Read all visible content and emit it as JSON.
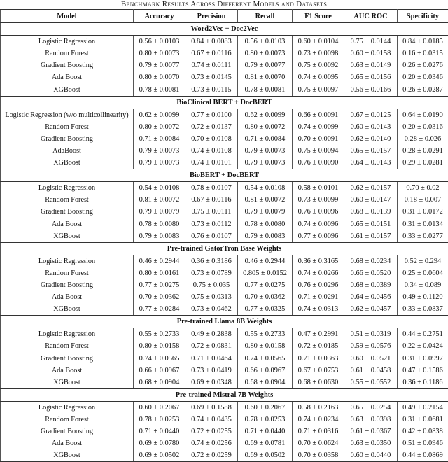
{
  "caption": "Benchmark Results Across Different Models and Datasets",
  "columns": [
    "Model",
    "Accuracy",
    "Precision",
    "Recall",
    "F1 Score",
    "AUC ROC",
    "Specificity"
  ],
  "sections": [
    {
      "title": "Word2Vec + Doc2Vec",
      "rows": [
        [
          "Logistic Regression",
          "0.56 ± 0.0103",
          "0.84 ± 0.0083",
          "0.56 ± 0.0103",
          "0.60 ± 0.0104",
          "0.75 ± 0.0144",
          "0.84 ± 0.0185"
        ],
        [
          "Random Forest",
          "0.80 ± 0.0073",
          "0.67 ± 0.0116",
          "0.80 ± 0.0073",
          "0.73 ± 0.0098",
          "0.60 ± 0.0158",
          "0.16 ± 0.0315"
        ],
        [
          "Gradient Boosting",
          "0.79 ± 0.0077",
          "0.74 ± 0.0111",
          "0.79 ± 0.0077",
          "0.75 ± 0.0092",
          "0.63 ± 0.0149",
          "0.26 ± 0.0276"
        ],
        [
          "Ada Boost",
          "0.80 ± 0.0070",
          "0.73 ± 0.0145",
          "0.81 ± 0.0070",
          "0.74 ± 0.0095",
          "0.65 ± 0.0156",
          "0.20 ± 0.0346"
        ],
        [
          "XGBoost",
          "0.78 ± 0.0081",
          "0.73 ± 0.0115",
          "0.78 ± 0.0081",
          "0.75 ± 0.0097",
          "0.56 ± 0.0166",
          "0.26 ± 0.0287"
        ]
      ]
    },
    {
      "title": "BioClinical BERT + DocBERT",
      "rows": [
        [
          "Logistic Regression (w/o multicollinearity)",
          "0.62 ± 0.0099",
          "0.77 ± 0.0100",
          "0.62 ± 0.0099",
          "0.66 ± 0.0091",
          "0.67 ± 0.0125",
          "0.64 ± 0.0190"
        ],
        [
          "Random Forest",
          "0.80 ± 0.0072",
          "0.72 ± 0.0137",
          "0.80 ± 0.0072",
          "0.74 ± 0.0099",
          "0.60 ± 0.0143",
          "0.20 ± 0.0316"
        ],
        [
          "Gradient Boosting",
          "0.71 ± 0.0084",
          "0.70 ± 0.0108",
          "0.71 ± 0.0084",
          "0.70 ± 0.0091",
          "0.62 ± 0.0140",
          "0.28 ± 0.026"
        ],
        [
          "AdaBoost",
          "0.79 ± 0.0073",
          "0.74 ± 0.0108",
          "0.79 ± 0.0073",
          "0.75 ± 0.0094",
          "0.65 ± 0.0157",
          "0.28 ± 0.0291"
        ],
        [
          "XGBoost",
          "0.79 ± 0.0073",
          "0.74 ± 0.0101",
          "0.79 ± 0.0073",
          "0.76 ± 0.0090",
          "0.64 ± 0.0143",
          "0.29 ± 0.0281"
        ]
      ]
    },
    {
      "title": "BioBERT + DocBERT",
      "rows": [
        [
          "Logistic Regression",
          "0.54 ± 0.0108",
          "0.78 ± 0.0107",
          "0.54 ± 0.0108",
          "0.58 ± 0.0101",
          "0.62 ± 0.0157",
          "0.70 ± 0.02"
        ],
        [
          "Random Forest",
          "0.81 ± 0.0072",
          "0.67 ± 0.0116",
          "0.81 ± 0.0072",
          "0.73 ± 0.0099",
          "0.60 ± 0.0147",
          "0.18 ± 0.007"
        ],
        [
          "Gradient Boosting",
          "0.79 ± 0.0079",
          "0.75 ± 0.0111",
          "0.79 ± 0.0079",
          "0.76 ± 0.0096",
          "0.68 ± 0.0139",
          "0.31 ± 0.0172"
        ],
        [
          "Ada Boost",
          "0.78 ± 0.0080",
          "0.73 ± 0.0112",
          "0.78 ± 0.0080",
          "0.74 ± 0.0096",
          "0.65 ± 0.0151",
          "0.31 ± 0.0134"
        ],
        [
          "XGBoost",
          "0.79 ± 0.0083",
          "0.76 ± 0.0107",
          "0.79 ± 0.0083",
          "0.77 ± 0.0096",
          "0.61 ± 0.0157",
          "0.33 ± 0.0277"
        ]
      ]
    },
    {
      "title": "Pre-trained GatorTron Base Weights",
      "rows": [
        [
          "Logistic Regression",
          "0.46 ± 0.2944",
          "0.36 ± 0.3186",
          "0.46 ± 0.2944",
          "0.36 ± 0.3165",
          "0.68 ± 0.0234",
          "0.52 ± 0.294"
        ],
        [
          "Random Forest",
          "0.80 ± 0.0161",
          "0.73 ± 0.0789",
          "0.805 ± 0.0152",
          "0.74 ± 0.0266",
          "0.66 ± 0.0520",
          "0.25 ± 0.0604"
        ],
        [
          "Gradient Boosting",
          "0.77 ± 0.0275",
          "0.75 ± 0.035",
          "0.77 ± 0.0275",
          "0.76 ± 0.0296",
          "0.68 ± 0.0389",
          "0.34 ± 0.089"
        ],
        [
          "Ada Boost",
          "0.70 ± 0.0362",
          "0.75 ± 0.0313",
          "0.70 ± 0.0362",
          "0.71 ± 0.0291",
          "0.64 ± 0.0456",
          "0.49 ± 0.1120"
        ],
        [
          "XGBoost",
          "0.77 ± 0.0284",
          "0.73 ± 0.0462",
          "0.77 ± 0.0325",
          "0.74 ± 0.0313",
          "0.62 ± 0.0457",
          "0.33 ± 0.0837"
        ]
      ]
    },
    {
      "title": "Pre-trained Llama 8B Weights",
      "rows": [
        [
          "Logistic Regression",
          "0.55 ± 0.2733",
          "0.49 ± 0.2838",
          "0.55 ± 0.2733",
          "0.47 ± 0.2991",
          "0.51 ± 0.0319",
          "0.44 ± 0.2751"
        ],
        [
          "Random Forest",
          "0.80 ± 0.0158",
          "0.72 ± 0.0831",
          "0.80 ± 0.0158",
          "0.72 ± 0.0185",
          "0.59 ± 0.0576",
          "0.22 ± 0.0424"
        ],
        [
          "Gradient Boosting",
          "0.74 ± 0.0565",
          "0.71 ± 0.0464",
          "0.74 ± 0.0565",
          "0.71 ± 0.0363",
          "0.60 ± 0.0521",
          "0.31 ± 0.0997"
        ],
        [
          "Ada Boost",
          "0.66 ± 0.0967",
          "0.73 ± 0.0419",
          "0.66 ± 0.0967",
          "0.67 ± 0.0753",
          "0.61 ± 0.0458",
          "0.47 ± 0.1586"
        ],
        [
          "XGBoost",
          "0.68 ± 0.0904",
          "0.69 ± 0.0348",
          "0.68 ± 0.0904",
          "0.68 ± 0.0630",
          "0.55 ± 0.0552",
          "0.36 ± 0.1186"
        ]
      ]
    },
    {
      "title": "Pre-trained Mistral 7B Weights",
      "rows": [
        [
          "Logistic Regression",
          "0.60 ± 0.2067",
          "0.69 ± 0.1588",
          "0.60 ± 0.2067",
          "0.58 ± 0.2163",
          "0.65 ± 0.0254",
          "0.49 ± 0.2154"
        ],
        [
          "Random Forest",
          "0.78 ± 0.0253",
          "0.74 ± 0.0435",
          "0.78 ± 0.0253",
          "0.74 ± 0.0234",
          "0.63 ± 0.0398",
          "0.31 ± 0.0681"
        ],
        [
          "Gradient Boosting",
          "0.71 ± 0.0440",
          "0.72 ± 0.0255",
          "0.71 ± 0.0440",
          "0.71 ± 0.0316",
          "0.61 ± 0.0367",
          "0.42 ± 0.0838"
        ],
        [
          "Ada Boost",
          "0.69 ± 0.0780",
          "0.74 ± 0.0256",
          "0.69 ± 0.0781",
          "0.70 ± 0.0624",
          "0.63 ± 0.0350",
          "0.51 ± 0.0946"
        ],
        [
          "XGBoost",
          "0.69 ± 0.0502",
          "0.72 ± 0.0259",
          "0.69 ± 0.0502",
          "0.70 ± 0.0358",
          "0.60 ± 0.0440",
          "0.44 ± 0.0869"
        ]
      ]
    }
  ]
}
